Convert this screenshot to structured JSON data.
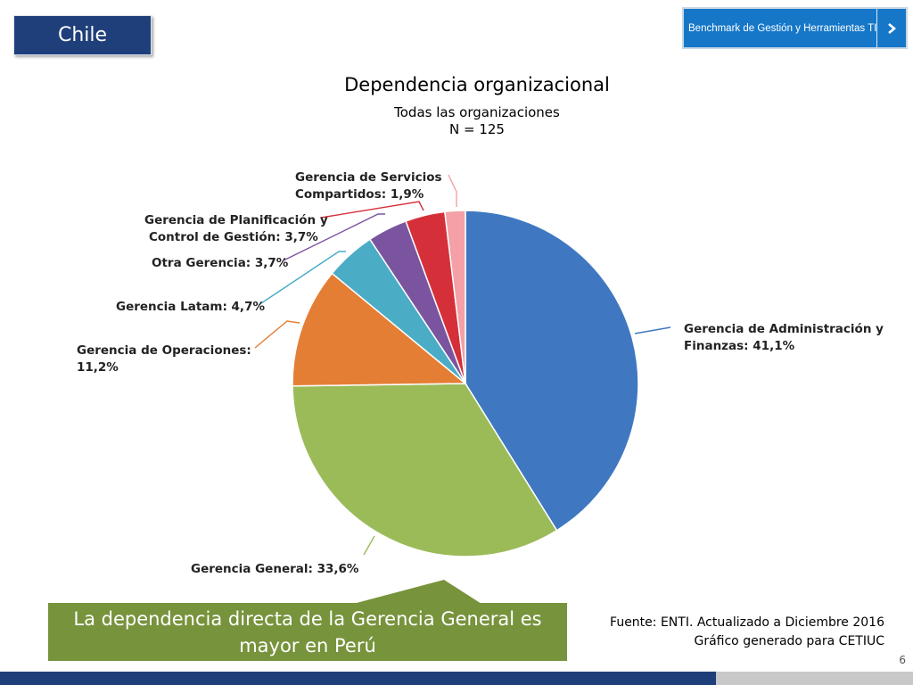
{
  "header": {
    "country": "Chile",
    "benchmark_button": "Benchmark de Gestión y Herramientas TI"
  },
  "chart_data": {
    "type": "pie",
    "title": "Dependencia organizacional",
    "subtitle_lines": [
      "Todas las organizaciones",
      "N = 125"
    ],
    "slices": [
      {
        "label_lines": [
          "Gerencia de Administración y",
          "Finanzas: 41,1%"
        ],
        "value": 41.1,
        "color": "#3f78c1"
      },
      {
        "label_lines": [
          "Gerencia General: 33,6%"
        ],
        "value": 33.6,
        "color": "#9bbb59"
      },
      {
        "label_lines": [
          "Gerencia de Operaciones:",
          "11,2%"
        ],
        "value": 11.2,
        "color": "#e57e35"
      },
      {
        "label_lines": [
          "Gerencia Latam: 4,7%"
        ],
        "value": 4.7,
        "color": "#4bacc6"
      },
      {
        "label_lines": [
          "Otra Gerencia: 3,7%"
        ],
        "value": 3.7,
        "color": "#7b549f"
      },
      {
        "label_lines": [
          "Gerencia de Planificación y",
          "Control de Gestión: 3,7%"
        ],
        "value": 3.7,
        "color": "#d5303a"
      },
      {
        "label_lines": [
          "Gerencia de Servicios",
          "Compartidos: 1,9%"
        ],
        "value": 1.9,
        "color": "#f4a0a6"
      }
    ]
  },
  "callout": {
    "text": "La dependencia directa de la Gerencia General es mayor en Perú",
    "color": "#77933c"
  },
  "source": {
    "line1": "Fuente: ENTI. Actualizado a Diciembre 2016",
    "line2": "Gráfico generado para CETIUC"
  },
  "page_number": "6",
  "colors": {
    "navy": "#1f3f7a",
    "button_blue": "#1677c8"
  }
}
